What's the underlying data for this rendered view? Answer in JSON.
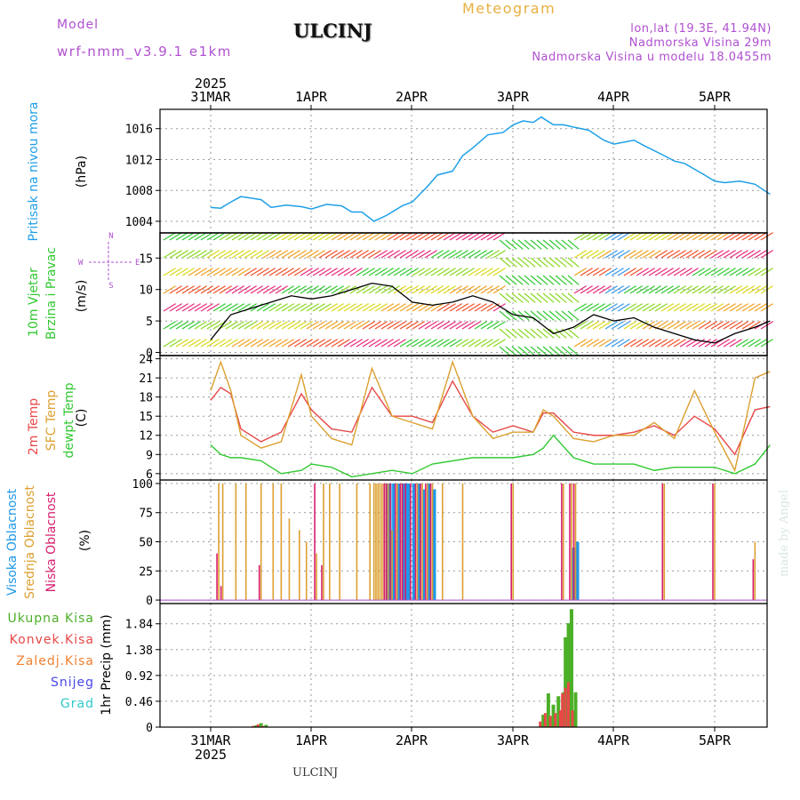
{
  "header": {
    "model_label": "Model",
    "model_name": "wrf-nmm_v3.9.1 e1km",
    "station": "ULCINJ",
    "meteogram_label": "Meteogram",
    "lonlat": "lon,lat (19.3E, 41.94N)",
    "elevation": "Nadmorska Visina 29m",
    "model_elevation": "Nadmorska Visina u modelu 18.0455m",
    "footer_station": "ULCINJ",
    "watermark": "made by Angel"
  },
  "colors": {
    "pressure": "#1ea0e8",
    "temp2m": "#e84848",
    "sfc_temp": "#dca030",
    "dewpoint": "#30c830",
    "high_cloud": "#1e98e8",
    "mid_cloud": "#dca030",
    "low_cloud": "#d81e6e",
    "total_precip": "#4caf28",
    "conv_precip": "#e84848",
    "frozen_precip": "#f08030",
    "snow": "#4848e8",
    "grad": "#30c8c8",
    "title_purple": "#b050d0",
    "title_orange": "#e8b040"
  },
  "time_axis": {
    "year": "2025",
    "days": [
      "31MAR",
      "1APR",
      "2APR",
      "3APR",
      "4APR",
      "5APR"
    ]
  },
  "panels": {
    "pressure": {
      "label": "Pritisak na nivou mora",
      "unit": "(hPa)"
    },
    "wind": {
      "label1": "10m Vjetar",
      "label2": "Brzina i Pravac",
      "unit": "(m/s)",
      "compass": {
        "w": "W",
        "e": "E",
        "n": "N",
        "s": "S"
      }
    },
    "temp": {
      "label1": "2m Temp",
      "label2": "SFC Temp",
      "label3": "dewpt Temp",
      "unit": "(C)"
    },
    "cloud": {
      "label1": "Visoka Oblacnost",
      "label2": "Srednja Oblacnost",
      "label3": "Niska Oblacnost",
      "unit": "(%)"
    },
    "precip": {
      "axis_label": "1hr Precip (mm)",
      "legend": [
        "Ukupna Kisa",
        "Konvek.Kisa",
        "Zaledj.Kisa",
        "Snijeg",
        "Grad"
      ]
    }
  },
  "chart_data": [
    {
      "type": "line",
      "name": "pressure",
      "ylabel": "(hPa)",
      "yticks": [
        1004,
        1008,
        1012,
        1016
      ],
      "ylim": [
        1002.5,
        1018.5
      ],
      "grid": true,
      "x": [
        0,
        0.1,
        0.2,
        0.3,
        0.5,
        0.6,
        0.75,
        0.9,
        1.0,
        1.15,
        1.3,
        1.4,
        1.5,
        1.62,
        1.75,
        1.9,
        2.0,
        2.15,
        2.25,
        2.4,
        2.5,
        2.6,
        2.75,
        2.9,
        3.0,
        3.1,
        3.2,
        3.28,
        3.4,
        3.5,
        3.6,
        3.75,
        3.9,
        4.0,
        4.2,
        4.3,
        4.5,
        4.6,
        4.7,
        4.9,
        5.0,
        5.1,
        5.25,
        5.4,
        5.55
      ],
      "series": [
        {
          "values": [
            1005.8,
            1005.7,
            1006.5,
            1007.2,
            1006.8,
            1005.8,
            1006.1,
            1005.9,
            1005.6,
            1006.2,
            1006.0,
            1005.2,
            1005.2,
            1004.0,
            1004.8,
            1006.0,
            1006.5,
            1008.5,
            1010.0,
            1010.5,
            1012.5,
            1013.5,
            1015.2,
            1015.5,
            1016.5,
            1017.0,
            1016.8,
            1017.5,
            1016.5,
            1016.5,
            1016.2,
            1015.8,
            1014.5,
            1014.0,
            1014.5,
            1013.8,
            1012.5,
            1011.8,
            1011.5,
            1010.0,
            1009.2,
            1009.0,
            1009.2,
            1008.8,
            1007.5
          ]
        }
      ]
    },
    {
      "type": "line",
      "name": "wind",
      "ylabel": "(m/s)",
      "yticks": [
        0,
        5,
        10,
        15
      ],
      "ylim": [
        -0.5,
        19
      ],
      "grid": true,
      "x": [
        0,
        0.2,
        0.4,
        0.6,
        0.8,
        1.0,
        1.2,
        1.4,
        1.6,
        1.8,
        2.0,
        2.2,
        2.4,
        2.6,
        2.8,
        3.0,
        3.2,
        3.4,
        3.6,
        3.8,
        4.0,
        4.2,
        4.4,
        4.6,
        4.8,
        5.0,
        5.2,
        5.4,
        5.55
      ],
      "series": [
        {
          "values": [
            2,
            6,
            7,
            8,
            9,
            8.5,
            9,
            10,
            11,
            10.5,
            8,
            7.5,
            8,
            9,
            8,
            6,
            5.5,
            3,
            4,
            6,
            5,
            5.5,
            4,
            3,
            2,
            1.5,
            3,
            4,
            5
          ]
        }
      ]
    },
    {
      "type": "line",
      "name": "temperature",
      "ylabel": "(C)",
      "yticks": [
        6,
        9,
        12,
        15,
        18,
        21,
        24
      ],
      "ylim": [
        5,
        24.5
      ],
      "grid": true,
      "x": [
        0,
        0.1,
        0.2,
        0.3,
        0.5,
        0.7,
        0.9,
        1.0,
        1.2,
        1.4,
        1.6,
        1.8,
        2.0,
        2.2,
        2.4,
        2.6,
        2.8,
        3.0,
        3.2,
        3.3,
        3.4,
        3.6,
        3.8,
        4.0,
        4.2,
        4.4,
        4.6,
        4.8,
        5.0,
        5.2,
        5.4,
        5.55
      ],
      "series": [
        {
          "name": "2m Temp",
          "values": [
            17.5,
            19.5,
            18.5,
            13,
            11,
            12.5,
            18.5,
            16,
            13,
            12.5,
            19.5,
            15,
            15,
            14,
            20.5,
            15,
            12.5,
            13.5,
            12.5,
            15.5,
            15.5,
            12.5,
            12,
            12,
            12.5,
            13.5,
            12,
            15,
            13,
            9,
            16,
            16.5
          ]
        },
        {
          "name": "SFC Temp",
          "values": [
            19,
            23.5,
            19,
            12,
            10,
            11,
            21.5,
            15,
            11.5,
            10.5,
            22.5,
            15,
            14,
            13,
            23.5,
            15,
            11.5,
            12.5,
            12.5,
            16,
            15,
            11.5,
            11,
            12,
            12,
            14,
            11.5,
            19,
            12.5,
            6.5,
            21,
            22
          ]
        },
        {
          "name": "dewpt Temp",
          "values": [
            10.5,
            9,
            8.5,
            8.5,
            8,
            6,
            6.5,
            7.5,
            7,
            5.5,
            6,
            6.5,
            6,
            7.5,
            8,
            8.5,
            8.5,
            8.5,
            9,
            10,
            12,
            8.5,
            7.5,
            7.5,
            7.5,
            6.5,
            7,
            7,
            7,
            6,
            7.5,
            10.5
          ]
        }
      ]
    },
    {
      "type": "bar",
      "name": "cloud_cover",
      "ylabel": "(%)",
      "yticks": [
        0,
        25,
        50,
        75,
        100
      ],
      "ylim": [
        -3,
        103
      ],
      "grid": true,
      "series": [
        {
          "name": "Visoka Oblacnost",
          "x": [
            0.08,
            0.12,
            0.2,
            0.25,
            0.35,
            0.5,
            0.62,
            0.7,
            0.78,
            0.88,
            0.95,
            1.05,
            1.12,
            1.18,
            1.28,
            1.45,
            1.58,
            1.62,
            1.64,
            1.66,
            1.68,
            1.7,
            1.72,
            1.74,
            1.76,
            1.8,
            1.85,
            1.9,
            1.92,
            1.95,
            2.0,
            2.05,
            2.1,
            2.15,
            2.2,
            2.3,
            2.5,
            3.0,
            3.5,
            3.58,
            3.62,
            4.5,
            5.0,
            5.4
          ],
          "values": [
            0,
            0,
            0,
            0,
            0,
            0,
            0,
            0,
            0,
            0,
            0,
            0,
            0,
            0,
            0,
            0,
            0,
            0,
            0,
            0,
            0,
            0,
            0,
            100,
            100,
            100,
            100,
            100,
            100,
            100,
            100,
            100,
            95,
            100,
            95,
            0,
            0,
            0,
            0,
            45,
            50,
            0,
            0,
            0
          ]
        },
        {
          "name": "Srednja Oblacnost",
          "values": [
            100,
            100,
            0,
            100,
            100,
            100,
            100,
            100,
            70,
            60,
            50,
            40,
            100,
            100,
            100,
            100,
            100,
            100,
            100,
            100,
            100,
            100,
            100,
            100,
            100,
            60,
            100,
            100,
            0,
            0,
            0,
            100,
            100,
            100,
            100,
            100,
            100,
            100,
            100,
            100,
            100,
            100,
            100,
            50
          ]
        },
        {
          "name": "Niska Oblacnost",
          "values": [
            40,
            12,
            0,
            0,
            0,
            30,
            0,
            0,
            0,
            0,
            0,
            100,
            30,
            0,
            0,
            0,
            0,
            0,
            0,
            0,
            0,
            0,
            0,
            100,
            100,
            100,
            100,
            100,
            100,
            100,
            100,
            100,
            100,
            100,
            100,
            0,
            0,
            100,
            100,
            100,
            100,
            100,
            100,
            35
          ]
        }
      ]
    },
    {
      "type": "bar",
      "name": "precipitation",
      "ylabel": "1hr Precip (mm)",
      "yticks": [
        0,
        0.46,
        0.92,
        1.38,
        1.84
      ],
      "ylim": [
        0,
        2.2
      ],
      "grid": true,
      "series": [
        {
          "name": "Ukupna Kisa",
          "x": [
            0.45,
            0.5,
            0.55,
            3.3,
            3.35,
            3.4,
            3.45,
            3.5,
            3.52,
            3.55,
            3.58,
            3.62
          ],
          "values": [
            0.03,
            0.07,
            0.04,
            0.22,
            0.6,
            0.4,
            0.55,
            0.62,
            1.6,
            1.85,
            2.1,
            0.62
          ]
        },
        {
          "name": "Konvek.Kisa",
          "values": [
            0.02,
            0.05,
            0.02,
            0.1,
            0.25,
            0.2,
            0.25,
            0.3,
            0.6,
            0.7,
            0.8,
            0.3
          ]
        },
        {
          "name": "Zaledj.Kisa",
          "values": [
            0,
            0,
            0,
            0,
            0,
            0,
            0,
            0,
            0,
            0,
            0,
            0
          ]
        },
        {
          "name": "Snijeg",
          "values": [
            0,
            0,
            0,
            0,
            0,
            0,
            0,
            0,
            0,
            0,
            0,
            0
          ]
        },
        {
          "name": "Grad",
          "values": [
            0,
            0,
            0,
            0,
            0,
            0,
            0,
            0,
            0,
            0,
            0,
            0
          ]
        }
      ]
    }
  ]
}
